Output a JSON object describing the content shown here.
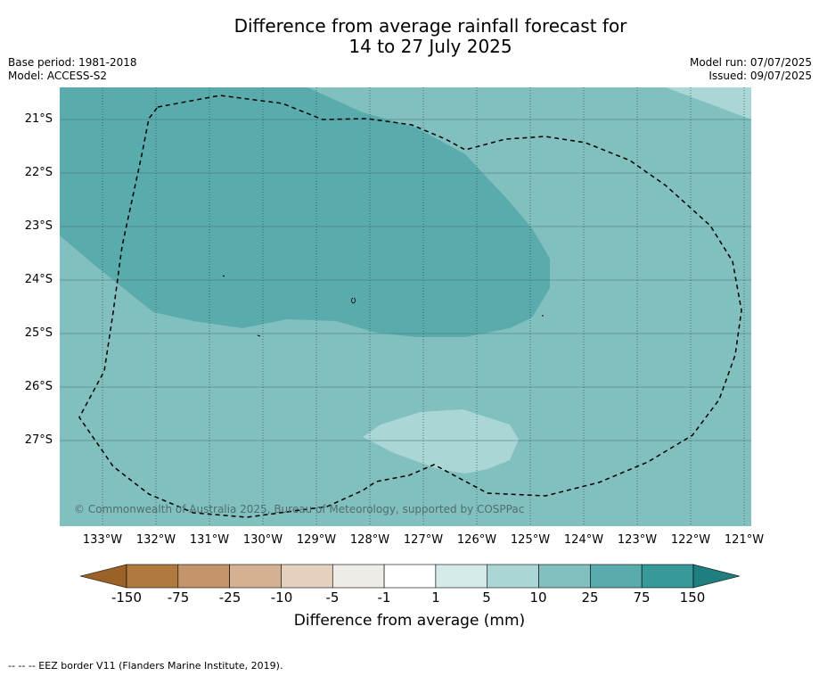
{
  "title": {
    "line1": "Difference from average rainfall forecast for",
    "line2": "14 to 27 July 2025"
  },
  "meta_left": {
    "base_period": "Base period: 1981-2018",
    "model": "Model: ACCESS-S2"
  },
  "meta_right": {
    "model_run": "Model run: 07/07/2025",
    "issued": "Issued: 09/07/2025"
  },
  "map": {
    "lat_labels": [
      "21°S",
      "22°S",
      "23°S",
      "24°S",
      "25°S",
      "26°S",
      "27°S"
    ],
    "lon_labels": [
      "133°W",
      "132°W",
      "131°W",
      "130°W",
      "129°W",
      "128°W",
      "127°W",
      "126°W",
      "125°W",
      "124°W",
      "123°W",
      "122°W",
      "121°W"
    ],
    "copyright": "© Commonwealth of Australia 2025, Bureau of Meteorology, supported by COSPPac",
    "colors": {
      "class_10_25": "#82bfbf",
      "class_25_75": "#5aabab",
      "class_5_10": "#aad6d6",
      "eez_line": "#000000"
    }
  },
  "colorbar": {
    "tick_labels": [
      "-150",
      "-75",
      "-25",
      "-10",
      "-5",
      "-1",
      "1",
      "5",
      "10",
      "25",
      "75",
      "150"
    ],
    "colors": [
      "#9b6228",
      "#b07a3e",
      "#c4956a",
      "#d4b190",
      "#e4d0bc",
      "#efebe6",
      "#ffffff",
      "#d5ebea",
      "#aad6d6",
      "#82bfbf",
      "#5aabab",
      "#359a98",
      "#1f7f7e"
    ],
    "label": "Difference from average (mm)"
  },
  "eez_note": "--  --  -- EEZ border V11 (Flanders Marine Institute, 2019)."
}
